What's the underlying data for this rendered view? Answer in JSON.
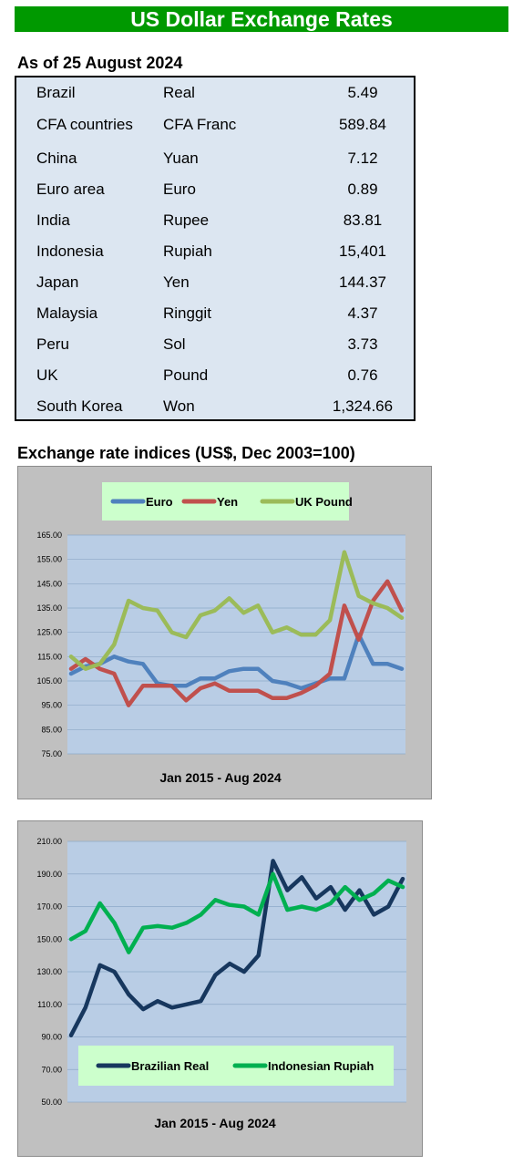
{
  "title": "US Dollar Exchange Rates",
  "rates_heading": "As of 25 August 2024",
  "rates": [
    {
      "country": "Brazil",
      "currency": "Real",
      "value": "5.49"
    },
    {
      "country": "CFA countries",
      "currency": "CFA Franc",
      "value": "589.84"
    },
    {
      "country": "China",
      "currency": "Yuan",
      "value": "7.12"
    },
    {
      "country": "Euro area",
      "currency": "Euro",
      "value": "0.89"
    },
    {
      "country": "India",
      "currency": "Rupee",
      "value": "83.81"
    },
    {
      "country": "Indonesia",
      "currency": "Rupiah",
      "value": "15,401"
    },
    {
      "country": "Japan",
      "currency": "Yen",
      "value": "144.37"
    },
    {
      "country": "Malaysia",
      "currency": "Ringgit",
      "value": "4.37"
    },
    {
      "country": "Peru",
      "currency": "Sol",
      "value": "3.73"
    },
    {
      "country": "UK",
      "currency": "Pound",
      "value": "0.76"
    },
    {
      "country": "South Korea",
      "currency": "Won",
      "value": "1,324.66"
    }
  ],
  "indices_heading": "Exchange rate indices (US$, Dec 2003=100)",
  "chart_data": [
    {
      "type": "line",
      "xlabel": "Jan 2015 - Aug 2024",
      "ylim": [
        75,
        165
      ],
      "yticks": [
        "165.00",
        "155.00",
        "145.00",
        "135.00",
        "125.00",
        "115.00",
        "105.00",
        "95.00",
        "85.00",
        "75.00"
      ],
      "x_range": [
        "2015-01",
        "2024-08"
      ],
      "points_per_series": 24,
      "legend_position": "top",
      "grid": true,
      "colors": {
        "plot": "#b9cde5",
        "legend_bg": "#ccffcc"
      },
      "series": [
        {
          "name": "Euro",
          "color": "#4f81bd",
          "values": [
            108,
            111,
            112,
            115,
            113,
            112,
            104,
            103,
            103,
            106,
            106,
            109,
            110,
            110,
            105,
            104,
            102,
            104,
            106,
            106,
            124,
            112,
            112,
            110
          ]
        },
        {
          "name": "Yen",
          "color": "#c0504d",
          "values": [
            110,
            114,
            110,
            108,
            95,
            103,
            103,
            103,
            97,
            102,
            104,
            101,
            101,
            101,
            98,
            98,
            100,
            103,
            108,
            136,
            122,
            138,
            146,
            134
          ]
        },
        {
          "name": "UK Pound",
          "color": "#9bbb59",
          "values": [
            115,
            110,
            112,
            120,
            138,
            135,
            134,
            125,
            123,
            132,
            134,
            139,
            133,
            136,
            125,
            127,
            124,
            124,
            130,
            158,
            140,
            137,
            135,
            131
          ]
        }
      ]
    },
    {
      "type": "line",
      "xlabel": "Jan 2015 - Aug 2024",
      "ylim": [
        50,
        210
      ],
      "yticks": [
        "210.00",
        "190.00",
        "170.00",
        "150.00",
        "130.00",
        "110.00",
        "90.00",
        "70.00",
        "50.00"
      ],
      "x_range": [
        "2015-01",
        "2024-08"
      ],
      "points_per_series": 24,
      "legend_position": "bottom",
      "grid": true,
      "colors": {
        "plot": "#b9cde5",
        "legend_bg": "#ccffcc"
      },
      "series": [
        {
          "name": "Brazilian Real",
          "color": "#17375e",
          "values": [
            91,
            108,
            134,
            130,
            116,
            107,
            112,
            108,
            110,
            112,
            128,
            135,
            130,
            140,
            198,
            180,
            188,
            175,
            182,
            168,
            180,
            165,
            170,
            187
          ]
        },
        {
          "name": "Indonesian Rupiah",
          "color": "#00b050",
          "values": [
            150,
            155,
            172,
            160,
            142,
            157,
            158,
            157,
            160,
            165,
            174,
            171,
            170,
            165,
            190,
            168,
            170,
            168,
            172,
            182,
            174,
            178,
            186,
            182
          ]
        }
      ]
    }
  ]
}
